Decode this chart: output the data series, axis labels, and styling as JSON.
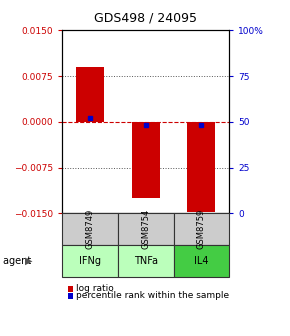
{
  "title": "GDS498 / 24095",
  "samples": [
    "GSM8749",
    "GSM8754",
    "GSM8759"
  ],
  "agents": [
    "IFNg",
    "TNFa",
    "IL4"
  ],
  "log_ratios": [
    0.009,
    -0.0125,
    -0.0148
  ],
  "percentile_ranks": [
    52,
    48,
    48
  ],
  "bar_color": "#cc0000",
  "percentile_color": "#0000cc",
  "left_ylim": [
    -0.015,
    0.015
  ],
  "right_ylim": [
    0,
    100
  ],
  "left_yticks": [
    -0.015,
    -0.0075,
    0,
    0.0075,
    0.015
  ],
  "right_yticks": [
    0,
    25,
    50,
    75,
    100
  ],
  "right_yticklabels": [
    "0",
    "25",
    "50",
    "75",
    "100%"
  ],
  "ytick_color_left": "#cc0000",
  "ytick_color_right": "#0000cc",
  "zero_line_color": "#cc0000",
  "grid_color": "#555555",
  "sample_box_color": "#cccccc",
  "agent_colors": [
    "#bbffbb",
    "#bbffbb",
    "#44cc44"
  ],
  "legend_red_label": "log ratio",
  "legend_blue_label": "percentile rank within the sample",
  "bar_width": 0.5
}
